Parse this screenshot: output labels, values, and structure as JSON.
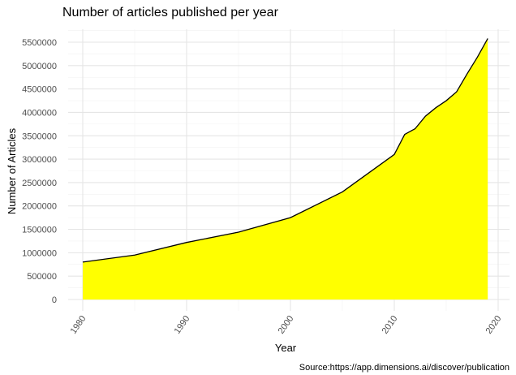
{
  "chart_data": {
    "type": "area",
    "title": "Number of articles published per year",
    "xlabel": "Year",
    "ylabel": "Number of Articles",
    "caption": "Source:https://app.dimensions.ai/discover/publication",
    "xlim": [
      1980,
      2020
    ],
    "ylim": [
      0,
      5600000
    ],
    "x_ticks": [
      1980,
      1990,
      2000,
      2010,
      2020
    ],
    "y_ticks": [
      0,
      500000,
      1000000,
      1500000,
      2000000,
      2500000,
      3000000,
      3500000,
      4000000,
      4500000,
      5000000,
      5500000
    ],
    "grid": true,
    "fill_color": "#ffff00",
    "line_color": "#000000",
    "series": [
      {
        "x": [
          1980,
          1985,
          1990,
          1995,
          2000,
          2005,
          2010,
          2011,
          2012,
          2013,
          2014,
          2015,
          2016,
          2017,
          2018,
          2019
        ],
        "values": [
          800000,
          950000,
          1220000,
          1440000,
          1750000,
          2300000,
          3100000,
          3530000,
          3650000,
          3920000,
          4100000,
          4250000,
          4440000,
          4820000,
          5180000,
          5580000
        ]
      }
    ]
  }
}
